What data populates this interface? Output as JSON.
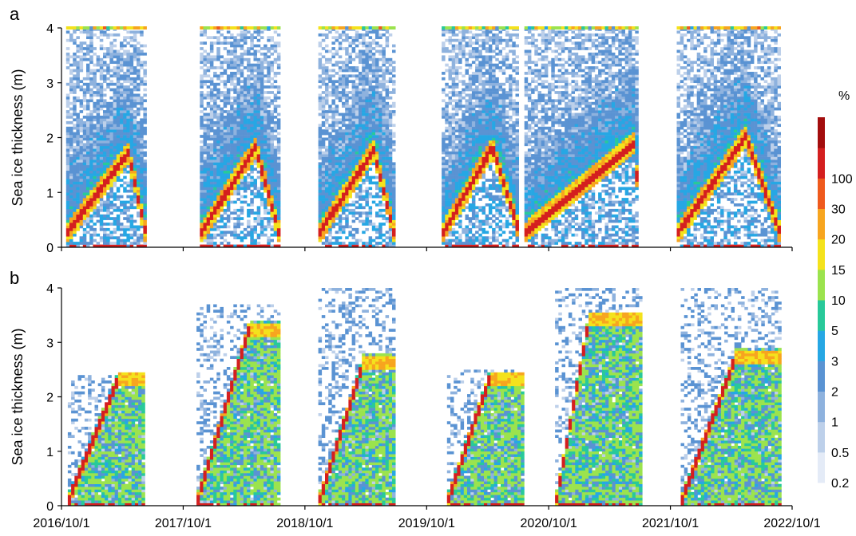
{
  "chart_data": {
    "type": "heatmap",
    "colorbar": {
      "unit": "%",
      "levels": [
        0.2,
        0.5,
        1,
        2,
        3,
        5,
        10,
        15,
        20,
        30,
        100
      ],
      "colors": [
        "#e4ebf7",
        "#bdd0ea",
        "#8eb2de",
        "#5a93d3",
        "#26a7e4",
        "#28c99a",
        "#9be34e",
        "#f4e21c",
        "#f7a51f",
        "#ef5a1d",
        "#d41f1f",
        "#a30d0d"
      ]
    },
    "x_ticks": [
      "2016/10/1",
      "2017/10/1",
      "2018/10/1",
      "2019/10/1",
      "2020/10/1",
      "2021/10/1",
      "2022/10/1"
    ],
    "xlim": [
      "2016/10/1",
      "2022/10/1"
    ],
    "panels": [
      {
        "label": "a",
        "ylabel": "Sea ice thickness (m)",
        "ylim": [
          0,
          4
        ],
        "yticks": [
          0,
          1,
          2,
          3,
          4
        ],
        "seasons": [
          {
            "start": "2016/10/15",
            "end": "2017/06/05",
            "crest_date": "2017/04/15",
            "crest": 1.7,
            "top_band": 4.0
          },
          {
            "start": "2017/11/20",
            "end": "2018/07/10",
            "crest_date": "2018/05/01",
            "crest": 1.8,
            "top_band": 4.0
          },
          {
            "start": "2018/11/10",
            "end": "2019/06/20",
            "crest_date": "2019/04/20",
            "crest": 1.75,
            "top_band": 4.0
          },
          {
            "start": "2019/11/15",
            "end": "2020/06/30",
            "crest_date": "2020/04/10",
            "crest": 1.8,
            "top_band": 4.0
          },
          {
            "start": "2020/07/20",
            "end": "2021/06/20",
            "crest_date": "2021/06/15",
            "crest": 1.9,
            "top_band": 4.0
          },
          {
            "start": "2021/10/20",
            "end": "2022/08/20",
            "crest_date": "2022/05/10",
            "crest": 2.0,
            "top_band": 4.0
          }
        ]
      },
      {
        "label": "b",
        "ylabel": "Sea ice thickness (m)",
        "ylim": [
          0,
          4
        ],
        "yticks": [
          0,
          1,
          2,
          3,
          4
        ],
        "seasons": [
          {
            "start": "2016/10/20",
            "end": "2017/06/05",
            "crest_date": "2017/03/15",
            "crest": 2.3,
            "top_band": 2.4
          },
          {
            "start": "2017/11/10",
            "end": "2018/07/15",
            "crest_date": "2018/04/10",
            "crest": 3.2,
            "top_band": 3.7
          },
          {
            "start": "2018/11/10",
            "end": "2019/06/20",
            "crest_date": "2019/03/20",
            "crest": 2.6,
            "top_band": 4.0
          },
          {
            "start": "2019/12/01",
            "end": "2020/07/10",
            "crest_date": "2020/04/01",
            "crest": 2.3,
            "top_band": 2.5
          },
          {
            "start": "2020/10/20",
            "end": "2021/06/30",
            "crest_date": "2021/01/25",
            "crest": 3.4,
            "top_band": 4.0
          },
          {
            "start": "2021/11/01",
            "end": "2022/08/20",
            "crest_date": "2022/04/10",
            "crest": 2.7,
            "top_band": 4.0
          }
        ]
      }
    ]
  }
}
